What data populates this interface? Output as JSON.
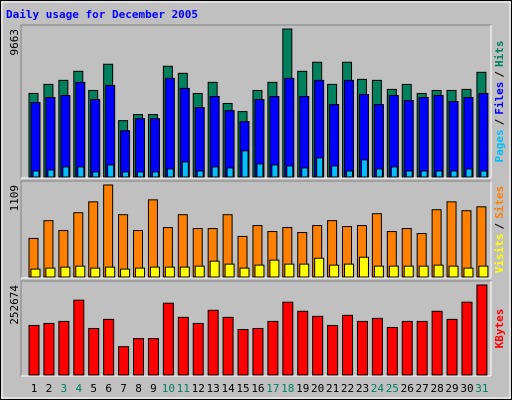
{
  "chart_data": [
    {
      "type": "bar",
      "title": "Daily usage for December 2005",
      "categories": [
        "1",
        "2",
        "3",
        "4",
        "5",
        "6",
        "7",
        "8",
        "9",
        "10",
        "11",
        "12",
        "13",
        "14",
        "15",
        "16",
        "17",
        "18",
        "19",
        "20",
        "21",
        "22",
        "23",
        "24",
        "25",
        "26",
        "27",
        "28",
        "29",
        "30",
        "31"
      ],
      "category_colors": [
        "#000000",
        "#000000",
        "#00805c",
        "#00805c",
        "#000000",
        "#000000",
        "#000000",
        "#000000",
        "#000000",
        "#00805c",
        "#00805c",
        "#000000",
        "#000000",
        "#000000",
        "#000000",
        "#000000",
        "#00805c",
        "#00805c",
        "#000000",
        "#000000",
        "#000000",
        "#000000",
        "#000000",
        "#00805c",
        "#00805c",
        "#000000",
        "#000000",
        "#000000",
        "#000000",
        "#000000",
        "#00805c"
      ],
      "legend_separator": "/",
      "series": [
        {
          "name": "Hits",
          "color": "#00805c",
          "values": [
            5456,
            6046,
            6310,
            6900,
            5652,
            7360,
            3680,
            4075,
            4075,
            7230,
            6770,
            5455,
            6180,
            4800,
            4270,
            5650,
            6180,
            9663,
            6900,
            7490,
            6046,
            7490,
            6375,
            6310,
            5720,
            6046,
            5455,
            5650,
            5650,
            5720,
            6835
          ]
        },
        {
          "name": "Files",
          "color": "#0000ff",
          "values": [
            4862,
            5190,
            5322,
            6176,
            5059,
            5979,
            3022,
            3811,
            3811,
            6439,
            5782,
            4533,
            5256,
            4336,
            3614,
            5059,
            5256,
            6439,
            5256,
            6307,
            4730,
            6307,
            5387,
            4730,
            5322,
            4993,
            5190,
            5322,
            4928,
            5190,
            5453
          ]
        },
        {
          "name": "Pages",
          "color": "#00c0ff",
          "values": [
            394,
            460,
            657,
            657,
            329,
            788,
            329,
            329,
            329,
            526,
            986,
            394,
            657,
            591,
            1708,
            854,
            788,
            723,
            591,
            1248,
            723,
            394,
            1117,
            526,
            657,
            394,
            394,
            394,
            394,
            526,
            394
          ]
        }
      ],
      "ylim": [
        0,
        9663
      ],
      "yticks": [
        9663
      ]
    },
    {
      "type": "bar",
      "series": [
        {
          "name": "Sites",
          "color": "#ff8000",
          "values": [
            465,
            679,
            560,
            775,
            906,
            1109,
            751,
            560,
            930,
            596,
            751,
            584,
            584,
            751,
            489,
            620,
            548,
            596,
            536,
            620,
            679,
            608,
            620,
            763,
            548,
            584,
            524,
            811,
            906,
            799,
            846
          ]
        },
        {
          "name": "Visits",
          "color": "#ffff00",
          "values": [
            95,
            107,
            119,
            131,
            107,
            119,
            95,
            107,
            119,
            119,
            119,
            131,
            191,
            155,
            107,
            143,
            203,
            155,
            155,
            226,
            143,
            155,
            238,
            131,
            131,
            131,
            131,
            143,
            131,
            107,
            131
          ]
        }
      ],
      "ylim": [
        0,
        1109
      ],
      "yticks": [
        1109
      ]
    },
    {
      "type": "bar",
      "series": [
        {
          "name": "KBytes",
          "color": "#ff0000",
          "values": [
            139111,
            144789,
            150467,
            210086,
            130594,
            156145,
            79492,
            102204,
            102204,
            201569,
            161823,
            144789,
            181696,
            161823,
            127755,
            130594,
            150467,
            204408,
            178857,
            164662,
            139111,
            167501,
            150467,
            158984,
            133433,
            150467,
            150467,
            178857,
            156145,
            204408,
            252674
          ]
        }
      ],
      "ylim": [
        0,
        252674
      ],
      "yticks": [
        252674
      ]
    }
  ]
}
